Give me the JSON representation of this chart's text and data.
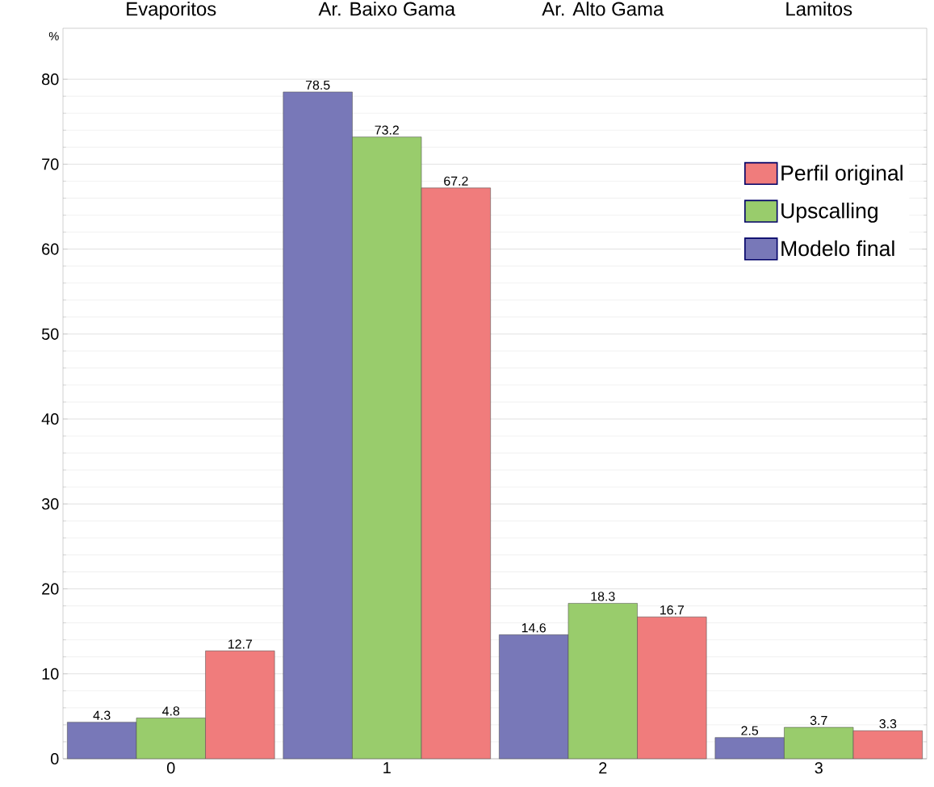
{
  "chart_data": {
    "type": "bar",
    "ylabel": "%",
    "categories": [
      "Evaporitos",
      "Ar. Baixo Gama",
      "Ar. Alto Gama",
      "Lamitos"
    ],
    "annotations": [
      "0",
      "1",
      "2",
      "3"
    ],
    "ylim": [
      0,
      86
    ],
    "yticks": [
      0,
      10,
      20,
      30,
      40,
      50,
      60,
      70,
      80
    ],
    "series": [
      {
        "name": "Modelo final",
        "color": "#7878b8",
        "values": [
          4.3,
          78.5,
          14.6,
          2.5
        ]
      },
      {
        "name": "Upscalling",
        "color": "#99cc6c",
        "values": [
          4.8,
          73.2,
          18.3,
          3.7
        ]
      },
      {
        "name": "Perfil original",
        "color": "#f07c7c",
        "values": [
          12.7,
          67.2,
          16.7,
          3.3
        ]
      }
    ],
    "data_labels": true,
    "grid": "y",
    "legend": "top right"
  }
}
